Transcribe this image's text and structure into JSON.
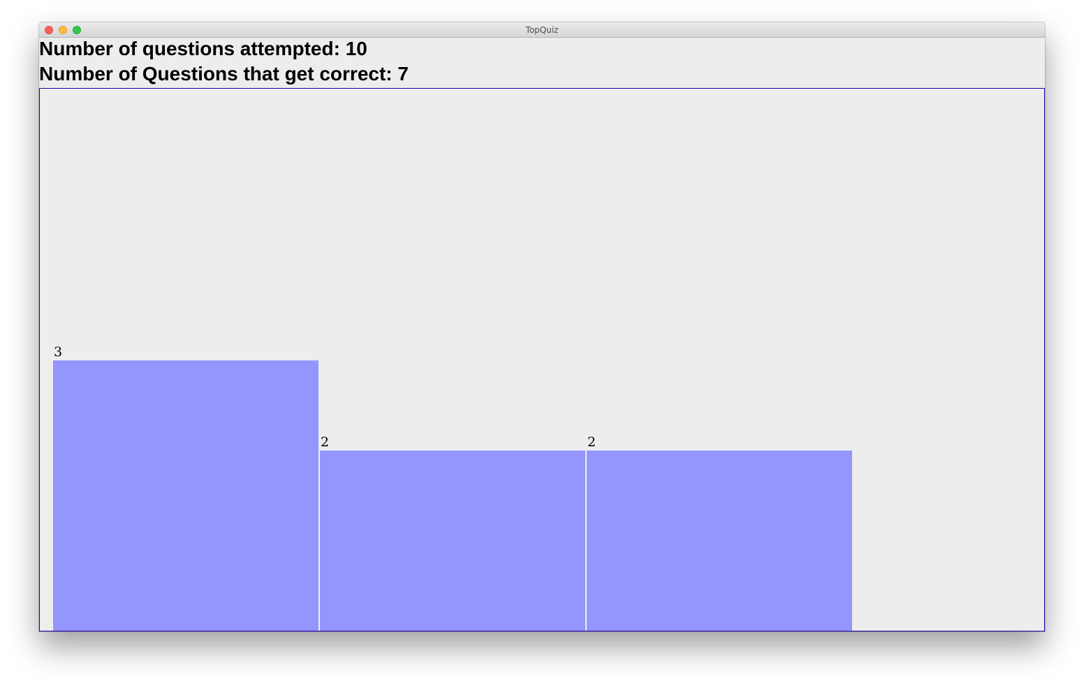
{
  "window": {
    "title": "TopQuiz"
  },
  "stats": {
    "attempted": "Number of questions attempted: 10",
    "correct": "Number of Questions that get correct: 7"
  },
  "colors": {
    "bar": "#9496fd",
    "panel_border": "#2200aa",
    "background": "#eeedee"
  },
  "chart_data": {
    "type": "bar",
    "values": [
      3,
      2,
      2
    ],
    "ylim": [
      0,
      6
    ],
    "title": "",
    "xlabel": "",
    "ylabel": ""
  }
}
